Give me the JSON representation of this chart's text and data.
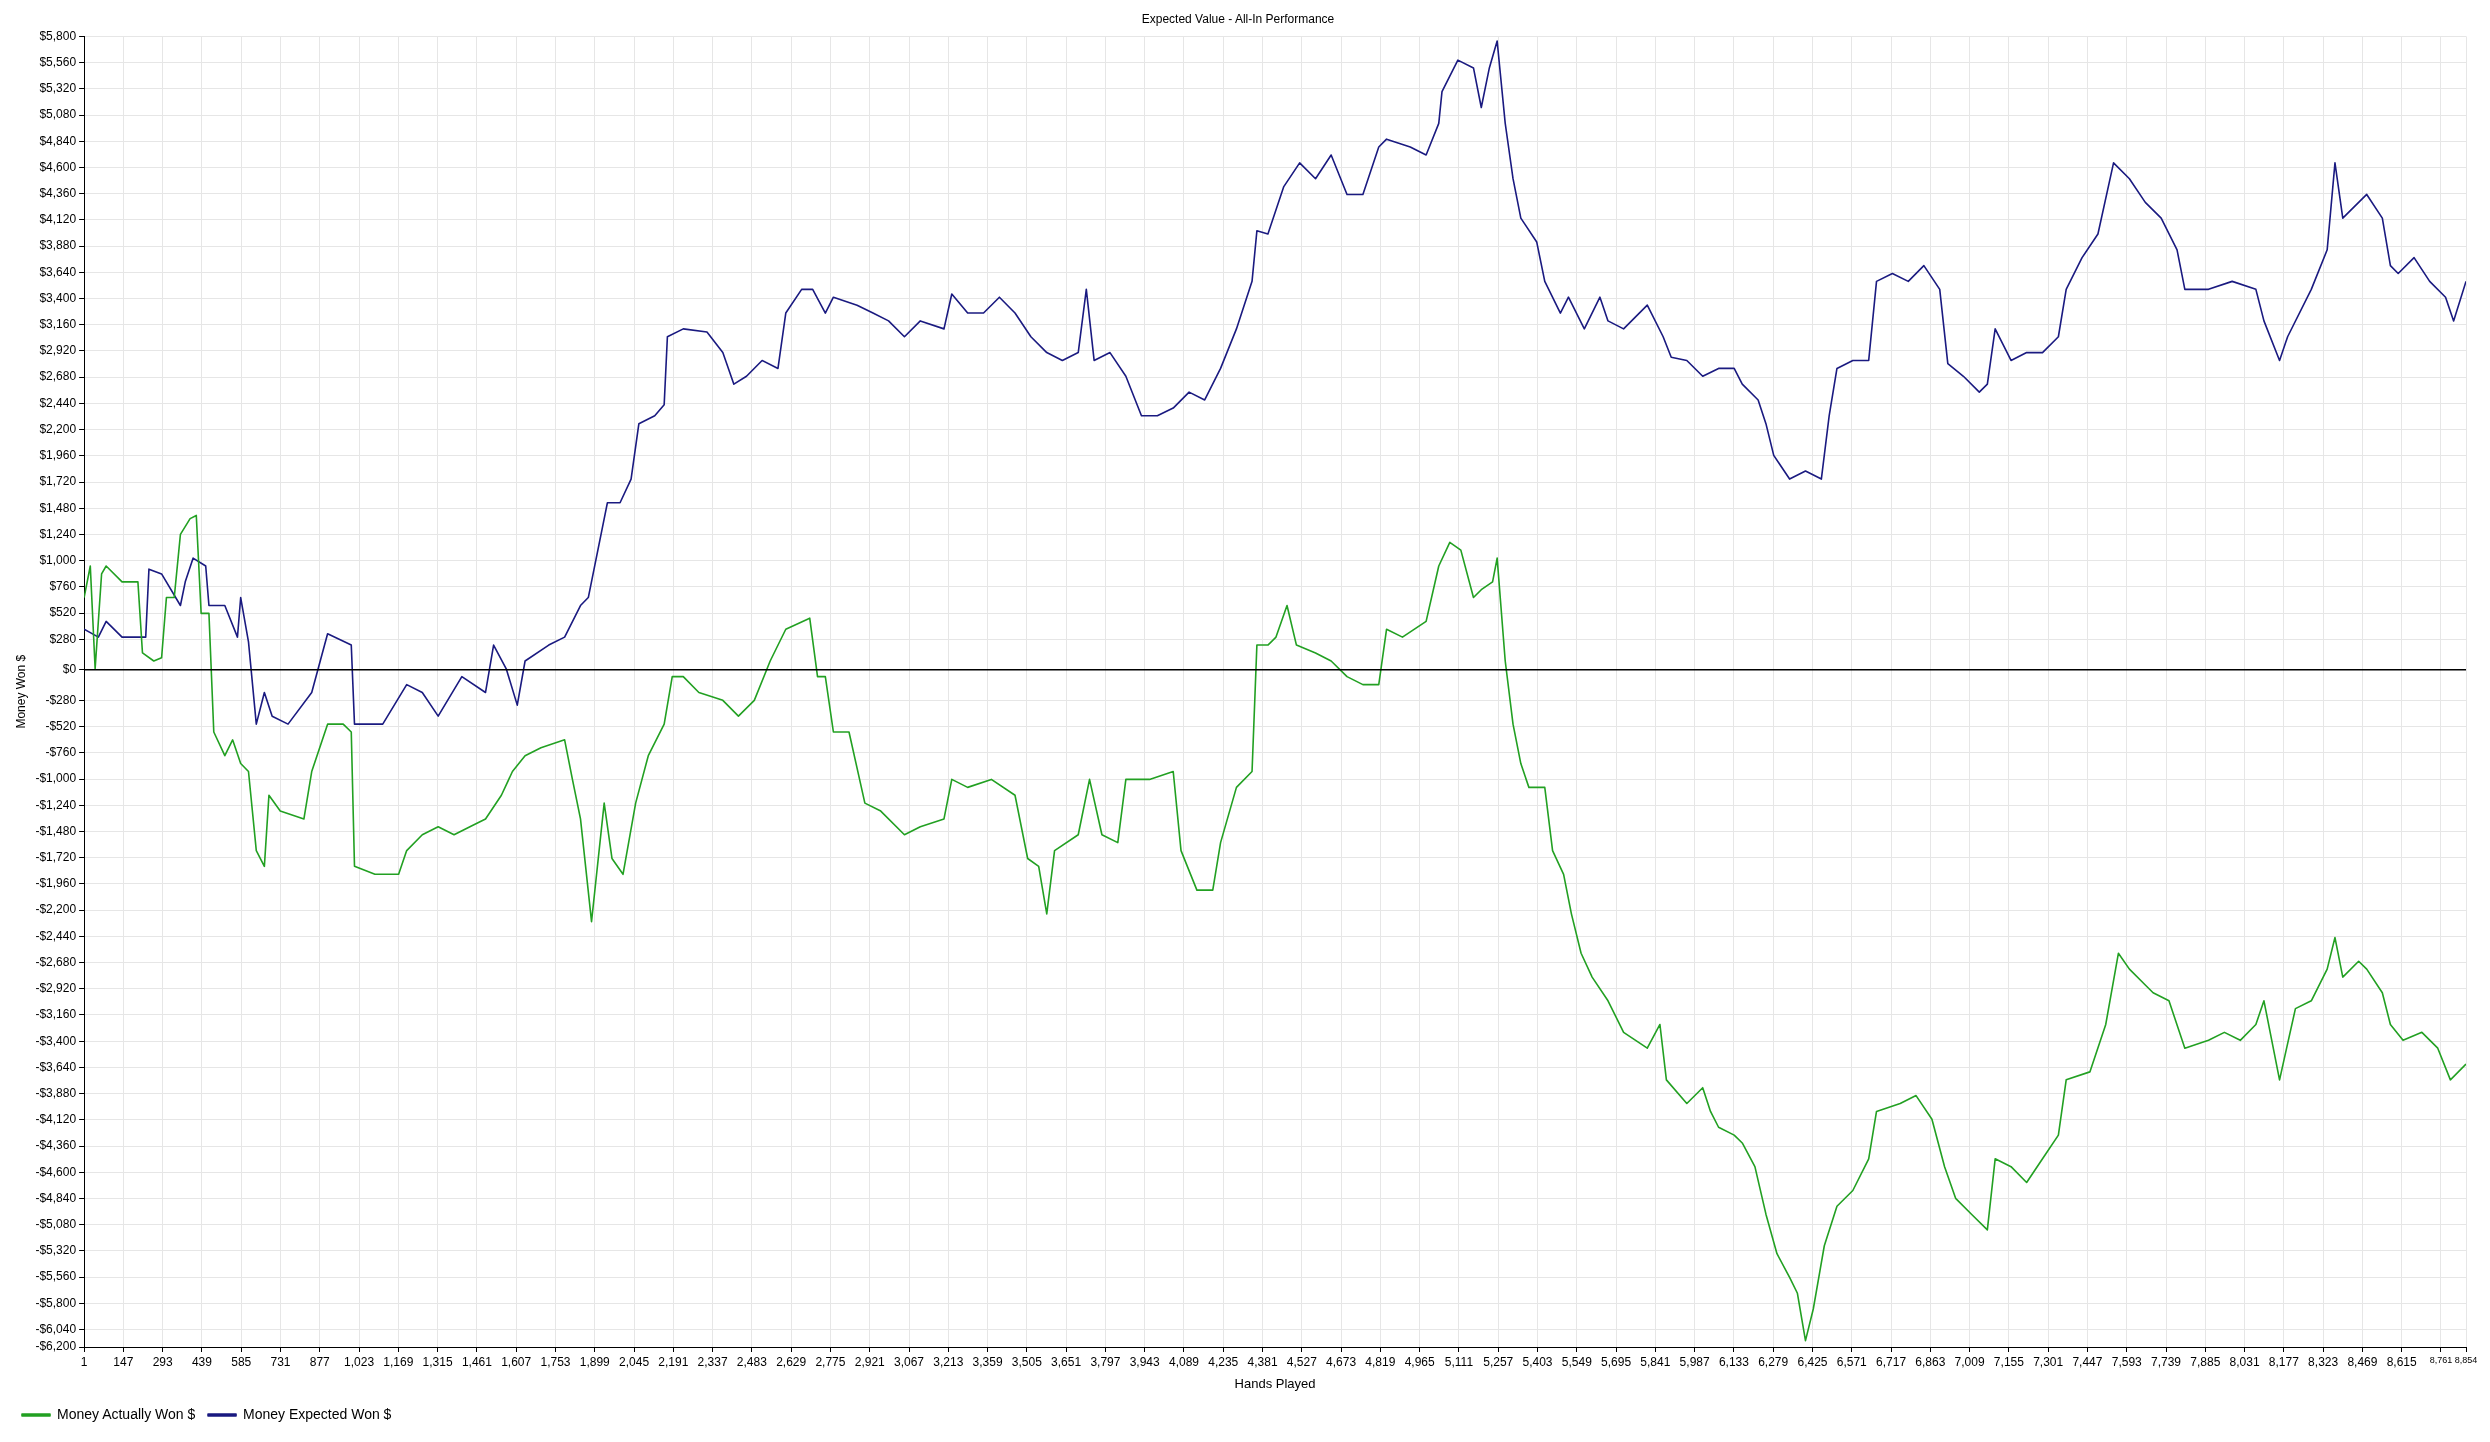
{
  "chart_data": {
    "type": "line",
    "title": "Expected Value - All-In Performance",
    "xlabel": "Hands Played",
    "ylabel": "Money Won $",
    "grid": true,
    "legend": "bottom left",
    "marker": "none",
    "line_style": "solid",
    "xlim": [
      1,
      8854
    ],
    "xticks": [
      1,
      147,
      293,
      439,
      585,
      731,
      877,
      {
        "value": 1023,
        "label": "1,023"
      },
      {
        "value": 1169,
        "label": "1,169"
      },
      {
        "value": 1315,
        "label": "1,315"
      },
      {
        "value": 1461,
        "label": "1,461"
      },
      {
        "value": 1607,
        "label": "1,607"
      },
      {
        "value": 1753,
        "label": "1,753"
      },
      {
        "value": 1899,
        "label": "1,899"
      },
      {
        "value": 2045,
        "label": "2,045"
      },
      {
        "value": 2191,
        "label": "2,191"
      },
      {
        "value": 2337,
        "label": "2,337"
      },
      {
        "value": 2483,
        "label": "2,483"
      },
      {
        "value": 2629,
        "label": "2,629"
      },
      {
        "value": 2775,
        "label": "2,775"
      },
      {
        "value": 2921,
        "label": "2,921"
      },
      {
        "value": 3067,
        "label": "3,067"
      },
      {
        "value": 3213,
        "label": "3,213"
      },
      {
        "value": 3359,
        "label": "3,359"
      },
      {
        "value": 3505,
        "label": "3,505"
      },
      {
        "value": 3651,
        "label": "3,651"
      },
      {
        "value": 3797,
        "label": "3,797"
      },
      {
        "value": 3943,
        "label": "3,943"
      },
      {
        "value": 4089,
        "label": "4,089"
      },
      {
        "value": 4235,
        "label": "4,235"
      },
      {
        "value": 4381,
        "label": "4,381"
      },
      {
        "value": 4527,
        "label": "4,527"
      },
      {
        "value": 4673,
        "label": "4,673"
      },
      {
        "value": 4819,
        "label": "4,819"
      },
      {
        "value": 4965,
        "label": "4,965"
      },
      {
        "value": 5111,
        "label": "5,111"
      },
      {
        "value": 5257,
        "label": "5,257"
      },
      {
        "value": 5403,
        "label": "5,403"
      },
      {
        "value": 5549,
        "label": "5,549"
      },
      {
        "value": 5695,
        "label": "5,695"
      },
      {
        "value": 5841,
        "label": "5,841"
      },
      {
        "value": 5987,
        "label": "5,987"
      },
      {
        "value": 6133,
        "label": "6,133"
      },
      {
        "value": 6279,
        "label": "6,279"
      },
      {
        "value": 6425,
        "label": "6,425"
      },
      {
        "value": 6571,
        "label": "6,571"
      },
      {
        "value": 6717,
        "label": "6,717"
      },
      {
        "value": 6863,
        "label": "6,863"
      },
      {
        "value": 7009,
        "label": "7,009"
      },
      {
        "value": 7155,
        "label": "7,155"
      },
      {
        "value": 7301,
        "label": "7,301"
      },
      {
        "value": 7447,
        "label": "7,447"
      },
      {
        "value": 7593,
        "label": "7,593"
      },
      {
        "value": 7739,
        "label": "7,739"
      },
      {
        "value": 7885,
        "label": "7,885"
      },
      {
        "value": 8031,
        "label": "8,031"
      },
      {
        "value": 8177,
        "label": "8,177"
      },
      {
        "value": 8323,
        "label": "8,323"
      },
      {
        "value": 8469,
        "label": "8,469"
      },
      {
        "value": 8615,
        "label": "8,615"
      },
      {
        "value": 8761,
        "label": "8,761"
      },
      {
        "value": 8854,
        "label": "8,854"
      }
    ],
    "ylim": [
      -6200,
      5800
    ],
    "yticks": [
      {
        "value": 5800,
        "label": "$5,800"
      },
      {
        "value": 5560,
        "label": "$5,560"
      },
      {
        "value": 5320,
        "label": "$5,320"
      },
      {
        "value": 5080,
        "label": "$5,080"
      },
      {
        "value": 4840,
        "label": "$4,840"
      },
      {
        "value": 4600,
        "label": "$4,600"
      },
      {
        "value": 4360,
        "label": "$4,360"
      },
      {
        "value": 4120,
        "label": "$4,120"
      },
      {
        "value": 3880,
        "label": "$3,880"
      },
      {
        "value": 3640,
        "label": "$3,640"
      },
      {
        "value": 3400,
        "label": "$3,400"
      },
      {
        "value": 3160,
        "label": "$3,160"
      },
      {
        "value": 2920,
        "label": "$2,920"
      },
      {
        "value": 2680,
        "label": "$2,680"
      },
      {
        "value": 2440,
        "label": "$2,440"
      },
      {
        "value": 2200,
        "label": "$2,200"
      },
      {
        "value": 1960,
        "label": "$1,960"
      },
      {
        "value": 1720,
        "label": "$1,720"
      },
      {
        "value": 1480,
        "label": "$1,480"
      },
      {
        "value": 1240,
        "label": "$1,240"
      },
      {
        "value": 1000,
        "label": "$1,000"
      },
      {
        "value": 760,
        "label": "$760"
      },
      {
        "value": 520,
        "label": "$520"
      },
      {
        "value": 280,
        "label": "$280"
      },
      {
        "value": 0,
        "label": "$0"
      },
      {
        "value": -280,
        "label": "-$280"
      },
      {
        "value": -520,
        "label": "-$520"
      },
      {
        "value": -760,
        "label": "-$760"
      },
      {
        "value": -1000,
        "label": "-$1,000"
      },
      {
        "value": -1240,
        "label": "-$1,240"
      },
      {
        "value": -1480,
        "label": "-$1,480"
      },
      {
        "value": -1720,
        "label": "-$1,720"
      },
      {
        "value": -1960,
        "label": "-$1,960"
      },
      {
        "value": -2200,
        "label": "-$2,200"
      },
      {
        "value": -2440,
        "label": "-$2,440"
      },
      {
        "value": -2680,
        "label": "-$2,680"
      },
      {
        "value": -2920,
        "label": "-$2,920"
      },
      {
        "value": -3160,
        "label": "-$3,160"
      },
      {
        "value": -3400,
        "label": "-$3,400"
      },
      {
        "value": -3640,
        "label": "-$3,640"
      },
      {
        "value": -3880,
        "label": "-$3,880"
      },
      {
        "value": -4120,
        "label": "-$4,120"
      },
      {
        "value": -4360,
        "label": "-$4,360"
      },
      {
        "value": -4600,
        "label": "-$4,600"
      },
      {
        "value": -4840,
        "label": "-$4,840"
      },
      {
        "value": -5080,
        "label": "-$5,080"
      },
      {
        "value": -5320,
        "label": "-$5,320"
      },
      {
        "value": -5560,
        "label": "-$5,560"
      },
      {
        "value": -5800,
        "label": "-$5,800"
      },
      {
        "value": -6040,
        "label": "-$6,040"
      },
      {
        "value": -6200,
        "label": "-$6,200"
      }
    ],
    "ref_lines": [
      {
        "axis": "y",
        "value": 0,
        "color": "#000000"
      }
    ],
    "series": [
      {
        "name": "Money Actually Won $",
        "color": "#22a022",
        "x": [
          1,
          24,
          42,
          66,
          83,
          142,
          201,
          218,
          260,
          289,
          307,
          336,
          359,
          395,
          418,
          436,
          465,
          483,
          524,
          553,
          583,
          612,
          641,
          671,
          688,
          730,
          818,
          847,
          906,
          964,
          994,
          1006,
          1082,
          1170,
          1200,
          1258,
          1317,
          1376,
          1435,
          1493,
          1552,
          1593,
          1640,
          1699,
          1787,
          1816,
          1846,
          1887,
          1934,
          1963,
          2004,
          2051,
          2098,
          2157,
          2187,
          2228,
          2286,
          2375,
          2433,
          2492,
          2551,
          2609,
          2698,
          2727,
          2756,
          2786,
          2844,
          2903,
          2962,
          3050,
          3109,
          3197,
          3226,
          3285,
          3373,
          3461,
          3508,
          3549,
          3579,
          3608,
          3696,
          3738,
          3784,
          3843,
          3873,
          3961,
          4049,
          4078,
          4137,
          4196,
          4225,
          4284,
          4342,
          4360,
          4401,
          4431,
          4472,
          4507,
          4578,
          4636,
          4695,
          4754,
          4813,
          4842,
          4901,
          4989,
          5036,
          5077,
          5118,
          5165,
          5194,
          5236,
          5253,
          5283,
          5312,
          5341,
          5371,
          5430,
          5459,
          5500,
          5529,
          5565,
          5606,
          5665,
          5723,
          5811,
          5858,
          5882,
          5958,
          6017,
          6046,
          6076,
          6134,
          6164,
          6211,
          6252,
          6293,
          6340,
          6369,
          6399,
          6428,
          6469,
          6516,
          6575,
          6634,
          6663,
          6751,
          6810,
          6869,
          6916,
          6957,
          7016,
          7075,
          7104,
          7163,
          7221,
          7280,
          7339,
          7368,
          7456,
          7515,
          7562,
          7603,
          7662,
          7691,
          7750,
          7809,
          7897,
          7956,
          8015,
          8073,
          8103,
          8161,
          8220,
          8279,
          8338,
          8367,
          8396,
          8455,
          8485,
          8543,
          8573,
          8620,
          8690,
          8749,
          8796,
          8854
        ],
        "values": [
          662,
          951,
          10,
          878,
          951,
          806,
          806,
          155,
          81,
          111,
          662,
          662,
          1240,
          1385,
          1414,
          517,
          517,
          -569,
          -786,
          -641,
          -858,
          -931,
          -1655,
          -1799,
          -1148,
          -1293,
          -1365,
          -931,
          -497,
          -497,
          -569,
          -1799,
          -1872,
          -1872,
          -1655,
          -1510,
          -1437,
          -1510,
          -1437,
          -1365,
          -1148,
          -931,
          -786,
          -714,
          -641,
          -1003,
          -1365,
          -2306,
          -1220,
          -1727,
          -1872,
          -1220,
          -786,
          -497,
          -62,
          -62,
          -207,
          -279,
          -424,
          -279,
          81,
          372,
          473,
          -62,
          -62,
          -569,
          -569,
          -1220,
          -1293,
          -1510,
          -1437,
          -1365,
          -1003,
          -1076,
          -1003,
          -1148,
          -1727,
          -1799,
          -2234,
          -1655,
          -1510,
          -1003,
          -1510,
          -1582,
          -1003,
          -1003,
          -931,
          -1655,
          -2017,
          -2017,
          -1582,
          -1076,
          -931,
          227,
          227,
          300,
          589,
          227,
          155,
          81,
          -62,
          -135,
          -135,
          372,
          300,
          444,
          951,
          1168,
          1096,
          662,
          734,
          806,
          1023,
          81,
          -497,
          -858,
          -1076,
          -1076,
          -1655,
          -1872,
          -2234,
          -2595,
          -2813,
          -3030,
          -3319,
          -3464,
          -3247,
          -3754,
          -3970,
          -3826,
          -4043,
          -4188,
          -4260,
          -4332,
          -4549,
          -4984,
          -5346,
          -5563,
          -5708,
          -6142,
          -5852,
          -5273,
          -4911,
          -4767,
          -4477,
          -4043,
          -3970,
          -3898,
          -4115,
          -4549,
          -4839,
          -4984,
          -5128,
          -4477,
          -4549,
          -4694,
          -4477,
          -4260,
          -3754,
          -3681,
          -3247,
          -2595,
          -2740,
          -2885,
          -2957,
          -3030,
          -3464,
          -3392,
          -3319,
          -3392,
          -3247,
          -3030,
          -3754,
          -3102,
          -3030,
          -2740,
          -2451,
          -2813,
          -2668,
          -2740,
          -2957,
          -3247,
          -3392,
          -3319,
          -3464,
          -3754,
          -3609
        ]
      },
      {
        "name": "Money Expected Won $",
        "color": "#1a1a80",
        "x": [
          1,
          54,
          83,
          142,
          230,
          242,
          289,
          359,
          377,
          406,
          453,
          465,
          524,
          571,
          583,
          612,
          641,
          671,
          700,
          759,
          847,
          906,
          994,
          1006,
          1111,
          1200,
          1258,
          1317,
          1405,
          1493,
          1523,
          1570,
          1611,
          1640,
          1728,
          1787,
          1846,
          1875,
          1946,
          1993,
          2034,
          2063,
          2122,
          2157,
          2169,
          2228,
          2316,
          2375,
          2416,
          2463,
          2521,
          2580,
          2609,
          2668,
          2709,
          2756,
          2786,
          2874,
          2933,
          2991,
          3050,
          3109,
          3197,
          3226,
          3285,
          3344,
          3403,
          3461,
          3520,
          3579,
          3637,
          3696,
          3726,
          3755,
          3814,
          3873,
          3931,
          3990,
          4049,
          4108,
          4166,
          4225,
          4284,
          4342,
          4360,
          4401,
          4460,
          4519,
          4578,
          4636,
          4695,
          4754,
          4813,
          4842,
          4930,
          4989,
          5036,
          5048,
          5107,
          5165,
          5194,
          5224,
          5253,
          5283,
          5312,
          5341,
          5400,
          5430,
          5488,
          5518,
          5577,
          5635,
          5665,
          5723,
          5811,
          5870,
          5900,
          5958,
          6017,
          6076,
          6134,
          6164,
          6223,
          6252,
          6281,
          6340,
          6399,
          6458,
          6487,
          6516,
          6575,
          6634,
          6663,
          6722,
          6781,
          6839,
          6898,
          6928,
          6986,
          7045,
          7075,
          7104,
          7163,
          7221,
          7280,
          7339,
          7368,
          7427,
          7486,
          7544,
          7603,
          7662,
          7721,
          7780,
          7809,
          7897,
          7985,
          8073,
          8103,
          8161,
          8191,
          8279,
          8338,
          8367,
          8396,
          8455,
          8485,
          8543,
          8573,
          8602,
          8661,
          8719,
          8778,
          8808,
          8854
        ],
        "values": [
          372,
          300,
          444,
          300,
          300,
          922,
          878,
          589,
          806,
          1023,
          951,
          589,
          589,
          300,
          662,
          256,
          -497,
          -207,
          -424,
          -497,
          -207,
          330,
          227,
          -497,
          -497,
          -135,
          -207,
          -424,
          -62,
          -207,
          227,
          10,
          -323,
          81,
          227,
          300,
          589,
          662,
          1530,
          1530,
          1747,
          2254,
          2326,
          2427,
          3050,
          3122,
          3093,
          2905,
          2616,
          2688,
          2833,
          2760,
          3267,
          3484,
          3484,
          3267,
          3412,
          3339,
          3267,
          3195,
          3050,
          3195,
          3122,
          3441,
          3267,
          3267,
          3412,
          3267,
          3050,
          2905,
          2833,
          2905,
          3484,
          2833,
          2905,
          2688,
          2326,
          2326,
          2397,
          2543,
          2471,
          2760,
          3122,
          3557,
          4020,
          3991,
          4425,
          4642,
          4497,
          4714,
          4353,
          4353,
          4787,
          4859,
          4787,
          4714,
          5004,
          5294,
          5583,
          5511,
          5149,
          5511,
          5757,
          5004,
          4497,
          4136,
          3918,
          3557,
          3267,
          3412,
          3122,
          3412,
          3195,
          3122,
          3339,
          3050,
          2862,
          2833,
          2688,
          2760,
          2760,
          2616,
          2471,
          2254,
          1964,
          1747,
          1820,
          1747,
          2326,
          2760,
          2833,
          2833,
          3557,
          3629,
          3557,
          3701,
          3484,
          2804,
          2688,
          2543,
          2616,
          3122,
          2833,
          2905,
          2905,
          3050,
          3484,
          3774,
          3991,
          4642,
          4497,
          4280,
          4136,
          3846,
          3484,
          3484,
          3557,
          3484,
          3195,
          2833,
          3050,
          3484,
          3846,
          4642,
          4136,
          4280,
          4353,
          4136,
          3701,
          3629,
          3774,
          3557,
          3412,
          3195,
          3557
        ]
      }
    ]
  }
}
